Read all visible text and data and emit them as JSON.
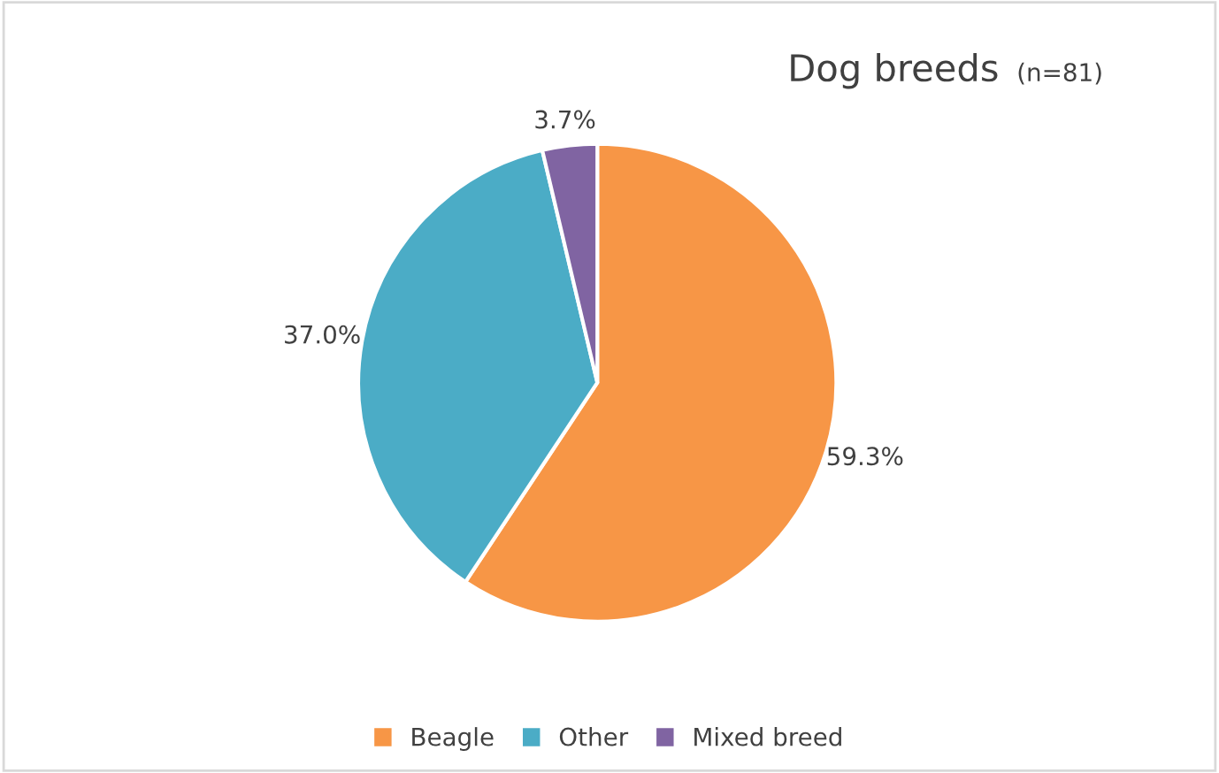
{
  "chart_data": {
    "type": "pie",
    "title": "Dog breeds",
    "subtitle": "(n=81)",
    "categories": [
      "Beagle",
      "Other",
      "Mixed breed"
    ],
    "values": [
      59.3,
      37.0,
      3.7
    ],
    "value_labels": [
      "59.3%",
      "37.0%",
      "3.7%"
    ],
    "colors": [
      "#f79646",
      "#4bacc6",
      "#8064a2"
    ],
    "legend": "bottom"
  }
}
